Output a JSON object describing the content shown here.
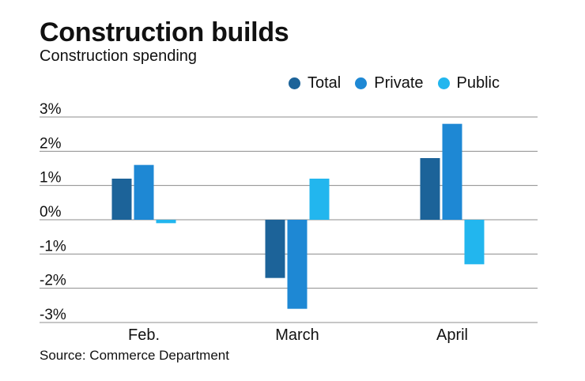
{
  "chart_data": {
    "type": "bar",
    "title": "Construction builds",
    "subtitle": "Construction spending",
    "source": "Source: Commerce Department",
    "categories": [
      "Feb.",
      "March",
      "April"
    ],
    "series": [
      {
        "name": "Total",
        "color": "#1c6399",
        "values": [
          1.2,
          -1.7,
          1.8
        ]
      },
      {
        "name": "Private",
        "color": "#1e88d4",
        "values": [
          1.6,
          -2.6,
          2.8
        ]
      },
      {
        "name": "Public",
        "color": "#22b6ee",
        "values": [
          -0.1,
          1.2,
          -1.3
        ]
      }
    ],
    "yticks": [
      3,
      2,
      1,
      0,
      -1,
      -2,
      -3
    ],
    "ytick_labels": [
      "3%",
      "2%",
      "1%",
      "0%",
      "-1%",
      "-2%",
      "-3%"
    ],
    "ylim": [
      -3,
      3
    ],
    "grid": true,
    "legend_position": "top-right",
    "xlabel": "",
    "ylabel": ""
  }
}
